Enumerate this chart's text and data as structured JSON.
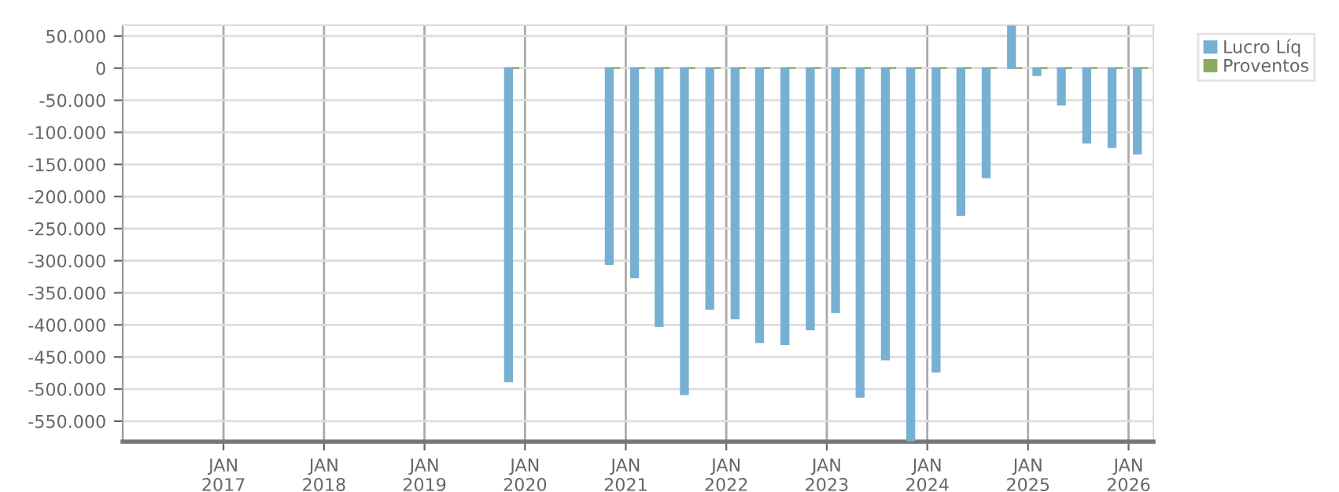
{
  "chart_data": {
    "type": "bar",
    "x": [
      "2019-11-15",
      "2020-11-15",
      "2021-02-15",
      "2021-05-15",
      "2021-08-15",
      "2021-11-15",
      "2022-02-15",
      "2022-05-15",
      "2022-08-15",
      "2022-11-15",
      "2023-02-15",
      "2023-05-15",
      "2023-08-15",
      "2023-11-15",
      "2024-02-15",
      "2024-05-15",
      "2024-08-15",
      "2024-11-15",
      "2025-02-15",
      "2025-05-15",
      "2025-08-15",
      "2025-11-15",
      "2026-02-15"
    ],
    "series": [
      {
        "name": "Lucro Líq",
        "color": "#77b0d3",
        "values": [
          -488000,
          -305000,
          -326000,
          -402000,
          -508000,
          -375000,
          -390000,
          -427000,
          -430000,
          -407000,
          -380000,
          -512000,
          -454000,
          -580000,
          -473000,
          -229000,
          -170000,
          65000,
          -11000,
          -57000,
          -116000,
          -123000,
          -133000
        ]
      },
      {
        "name": "Proventos",
        "color": "#8aaa64",
        "values": [
          0,
          0,
          0,
          0,
          0,
          0,
          0,
          0,
          0,
          0,
          0,
          0,
          0,
          0,
          0,
          0,
          0,
          0,
          0,
          0,
          0,
          0,
          0
        ]
      }
    ],
    "xlim": [
      "2016-01-01",
      "2026-04-01"
    ],
    "xticks": [
      {
        "value": "2017-01-01",
        "label": "JAN\n2017"
      },
      {
        "value": "2018-01-01",
        "label": "JAN\n2018"
      },
      {
        "value": "2019-01-01",
        "label": "JAN\n2019"
      },
      {
        "value": "2020-01-01",
        "label": "JAN\n2020"
      },
      {
        "value": "2021-01-01",
        "label": "JAN\n2021"
      },
      {
        "value": "2022-01-01",
        "label": "JAN\n2022"
      },
      {
        "value": "2023-01-01",
        "label": "JAN\n2023"
      },
      {
        "value": "2024-01-01",
        "label": "JAN\n2024"
      },
      {
        "value": "2025-01-01",
        "label": "JAN\n2025"
      },
      {
        "value": "2026-01-01",
        "label": "JAN\n2026"
      }
    ],
    "ylim": [
      -582000,
      67000
    ],
    "yticks": [
      {
        "value": 50000,
        "label": "50.000"
      },
      0,
      {
        "value": -50000,
        "label": "-50.000"
      },
      {
        "value": -100000,
        "label": "-100.000"
      },
      {
        "value": -150000,
        "label": "-150.000"
      },
      {
        "value": -200000,
        "label": "-200.000"
      },
      {
        "value": -250000,
        "label": "-250.000"
      },
      {
        "value": -300000,
        "label": "-300.000"
      },
      {
        "value": -350000,
        "label": "-350.000"
      },
      {
        "value": -400000,
        "label": "-400.000"
      },
      {
        "value": -450000,
        "label": "-450.000"
      },
      {
        "value": -500000,
        "label": "-500.000"
      },
      {
        "value": -550000,
        "label": "-550.000"
      }
    ],
    "grid": true,
    "legend": "top right"
  }
}
